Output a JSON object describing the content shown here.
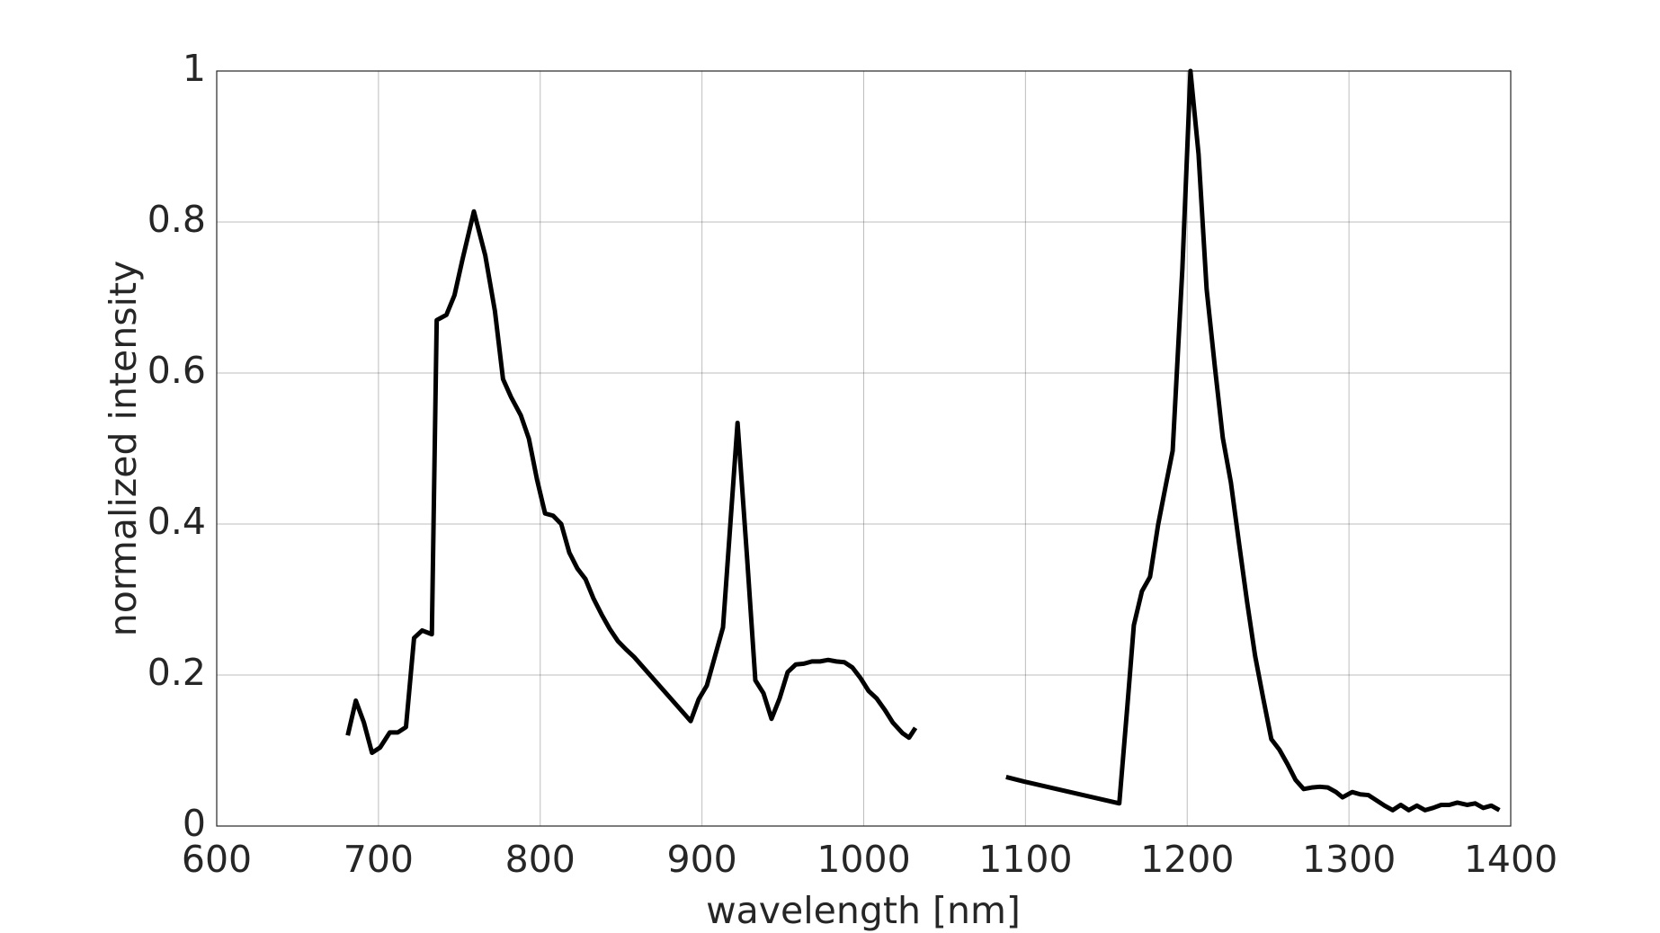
{
  "chart_data": {
    "type": "line",
    "xlabel": "wavelength [nm]",
    "ylabel": "normalized intensity",
    "xlim": [
      600,
      1400
    ],
    "xticks": [
      600,
      700,
      800,
      900,
      1000,
      1100,
      1200,
      1300,
      1400
    ],
    "ylim": [
      0,
      1
    ],
    "yticks": [
      0,
      0.2,
      0.4,
      0.6,
      0.8,
      1
    ],
    "grid": true,
    "x": [
      681,
      686,
      691,
      696,
      701,
      707,
      712,
      717,
      722,
      727,
      733,
      736,
      742,
      747,
      752,
      759,
      766,
      772,
      777,
      782,
      788,
      793,
      798,
      803,
      808,
      813,
      818,
      823,
      828,
      833,
      838,
      843,
      848,
      853,
      858,
      893,
      898,
      903,
      913,
      922,
      928,
      933,
      938,
      943,
      948,
      953,
      958,
      963,
      968,
      973,
      978,
      983,
      988,
      993,
      998,
      1003,
      1008,
      1013,
      1018,
      1024,
      1028,
      1032,
      1060,
      1088,
      1099,
      1158,
      1163,
      1167,
      1172,
      1177,
      1182,
      1187,
      1191,
      1197,
      1202,
      1207,
      1212,
      1217,
      1222,
      1227,
      1232,
      1237,
      1242,
      1247,
      1252,
      1257,
      1262,
      1267,
      1272,
      1277,
      1282,
      1287,
      1292,
      1296,
      1302,
      1307,
      1312,
      1317,
      1322,
      1327,
      1332,
      1337,
      1342,
      1347,
      1352,
      1357,
      1362,
      1367,
      1373,
      1378,
      1383,
      1388,
      1393
    ],
    "series": [
      {
        "color": "#000000",
        "values": [
          0.12,
          0.166,
          0.137,
          0.097,
          0.104,
          0.124,
          0.124,
          0.131,
          0.249,
          0.259,
          0.254,
          0.67,
          0.677,
          0.703,
          0.751,
          0.814,
          0.756,
          0.682,
          0.592,
          0.568,
          0.544,
          0.513,
          0.459,
          0.414,
          0.411,
          0.4,
          0.362,
          0.341,
          0.327,
          0.301,
          0.28,
          0.261,
          0.245,
          0.234,
          0.224,
          0.139,
          0.168,
          0.186,
          0.263,
          0.534,
          0.352,
          0.193,
          0.176,
          0.142,
          0.169,
          0.204,
          0.214,
          0.215,
          0.218,
          0.218,
          0.22,
          0.218,
          0.217,
          0.21,
          0.196,
          0.179,
          0.169,
          0.154,
          0.137,
          0.123,
          0.117,
          0.13,
          null,
          0.065,
          0.059,
          0.03,
          0.159,
          0.266,
          0.311,
          0.33,
          0.399,
          0.454,
          0.497,
          0.738,
          1.0,
          0.89,
          0.711,
          0.61,
          0.514,
          0.455,
          0.375,
          0.297,
          0.225,
          0.169,
          0.115,
          0.101,
          0.082,
          0.061,
          0.049,
          0.051,
          0.052,
          0.051,
          0.045,
          0.038,
          0.045,
          0.042,
          0.041,
          0.034,
          0.027,
          0.021,
          0.028,
          0.021,
          0.027,
          0.021,
          0.024,
          0.028,
          0.028,
          0.031,
          0.028,
          0.03,
          0.024,
          0.027,
          0.021
        ]
      }
    ]
  }
}
